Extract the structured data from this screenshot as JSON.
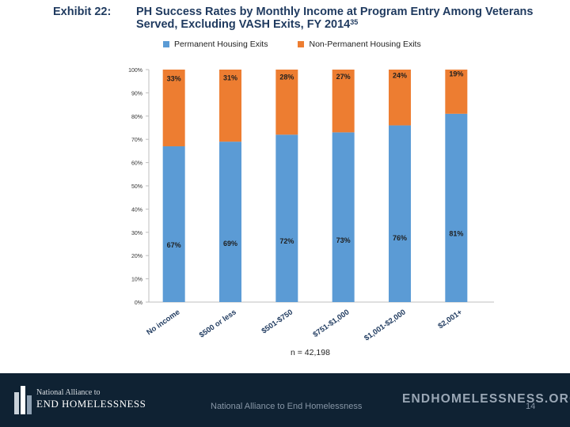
{
  "header": {
    "exhibit_label": "Exhibit 22:",
    "title": "PH Success Rates by Monthly Income at Program Entry Among Veterans Served, Excluding VASH Exits, FY 2014",
    "title_footnote": "35"
  },
  "legend": {
    "items": [
      {
        "label": "Permanent Housing Exits",
        "color": "#5b9bd5"
      },
      {
        "label": "Non-Permanent Housing Exits",
        "color": "#ed7d31"
      }
    ]
  },
  "chart_data": {
    "type": "bar",
    "stacked": true,
    "title": "PH Success Rates by Monthly Income at Program Entry Among Veterans Served, Excluding VASH Exits, FY 2014",
    "categories": [
      "No income",
      "$500 or less",
      "$501-$750",
      "$751-$1,000",
      "$1,001-$2,000",
      "$2,001+"
    ],
    "series": [
      {
        "name": "Permanent Housing Exits",
        "color": "#5b9bd5",
        "values": [
          67,
          69,
          72,
          73,
          76,
          81
        ],
        "labels": [
          "67%",
          "69%",
          "72%",
          "73%",
          "76%",
          "81%"
        ]
      },
      {
        "name": "Non-Permanent Housing Exits",
        "color": "#ed7d31",
        "values": [
          33,
          31,
          28,
          27,
          24,
          19
        ],
        "labels": [
          "33%",
          "31%",
          "28%",
          "27%",
          "24%",
          "19%"
        ]
      }
    ],
    "ylim": [
      0,
      100
    ],
    "yticks": [
      "0%",
      "10%",
      "20%",
      "30%",
      "40%",
      "50%",
      "60%",
      "70%",
      "80%",
      "90%",
      "100%"
    ],
    "xlabel": "",
    "ylabel": "",
    "note": "n = 42,198"
  },
  "footer": {
    "org_line1": "National Alliance to",
    "org_line2": "END HOMELESSNESS",
    "center_text": "National Alliance to End Homelessness",
    "site": "ENDHOMELESSNESS.ORG",
    "page_number": "14"
  }
}
